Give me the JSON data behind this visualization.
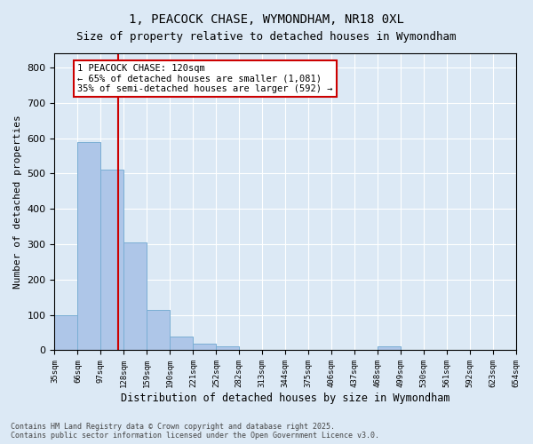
{
  "title_line1": "1, PEACOCK CHASE, WYMONDHAM, NR18 0XL",
  "title_line2": "Size of property relative to detached houses in Wymondham",
  "xlabel": "Distribution of detached houses by size in Wymondham",
  "ylabel": "Number of detached properties",
  "annotation_title": "1 PEACOCK CHASE: 120sqm",
  "annotation_line2": "← 65% of detached houses are smaller (1,081)",
  "annotation_line3": "35% of semi-detached houses are larger (592) →",
  "footer_line1": "Contains HM Land Registry data © Crown copyright and database right 2025.",
  "footer_line2": "Contains public sector information licensed under the Open Government Licence v3.0.",
  "bar_edges": [
    35,
    66,
    97,
    128,
    159,
    190,
    221,
    252,
    282,
    313,
    344,
    375,
    406,
    437,
    468,
    499,
    530,
    561,
    592,
    623,
    654
  ],
  "bar_heights": [
    100,
    590,
    510,
    305,
    115,
    40,
    20,
    10,
    0,
    0,
    0,
    0,
    0,
    0,
    10,
    0,
    0,
    0,
    0,
    0
  ],
  "bar_color": "#aec6e8",
  "bar_edge_color": "#7aaed4",
  "property_line_x": 120,
  "ylim": [
    0,
    840
  ],
  "yticks": [
    0,
    100,
    200,
    300,
    400,
    500,
    600,
    700,
    800
  ],
  "background_color": "#dce9f5",
  "plot_bg_color": "#dce9f5",
  "grid_color": "#ffffff",
  "annotation_box_color": "#ffffff",
  "annotation_border_color": "#cc0000",
  "property_line_color": "#cc0000"
}
